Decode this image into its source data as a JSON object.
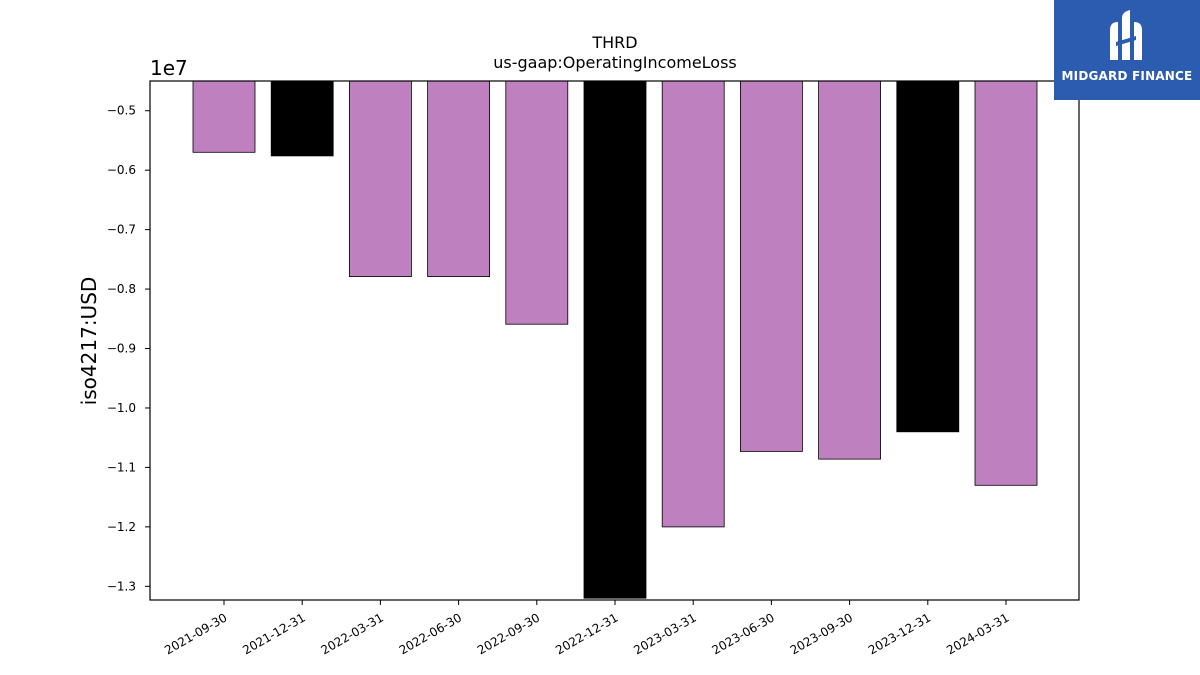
{
  "chart_data": {
    "type": "bar",
    "title": "THRD",
    "subtitle": "us-gaap:OperatingIncomeLoss",
    "xlabel": "",
    "ylabel": "iso4217:USD",
    "offset_text": "1e7",
    "categories": [
      "2021-09-30",
      "2021-12-31",
      "2022-03-31",
      "2022-06-30",
      "2022-09-30",
      "2022-12-31",
      "2023-03-31",
      "2023-06-30",
      "2023-09-30",
      "2023-12-31",
      "2024-03-31"
    ],
    "values": [
      -5700000,
      -5760000,
      -7790000,
      -7790000,
      -8590000,
      -13200000,
      -12000000,
      -10730000,
      -10860000,
      -10400000,
      -11300000
    ],
    "bar_colors": [
      "#bf80bf",
      "#000000",
      "#bf80bf",
      "#bf80bf",
      "#bf80bf",
      "#000000",
      "#bf80bf",
      "#bf80bf",
      "#bf80bf",
      "#000000",
      "#bf80bf"
    ],
    "ylim": [
      -13230000,
      -4500000
    ],
    "yticks": [
      -5000000,
      -6000000,
      -7000000,
      -8000000,
      -9000000,
      -10000000,
      -11000000,
      -12000000,
      -13000000
    ],
    "ytick_labels": [
      "−0.5",
      "−0.6",
      "−0.7",
      "−0.8",
      "−0.9",
      "−1.0",
      "−1.1",
      "−1.2",
      "−1.3"
    ],
    "grid": false,
    "legend": "none"
  },
  "logo": {
    "text": "MIDGARD FINANCE",
    "color": "#2b5caf"
  }
}
